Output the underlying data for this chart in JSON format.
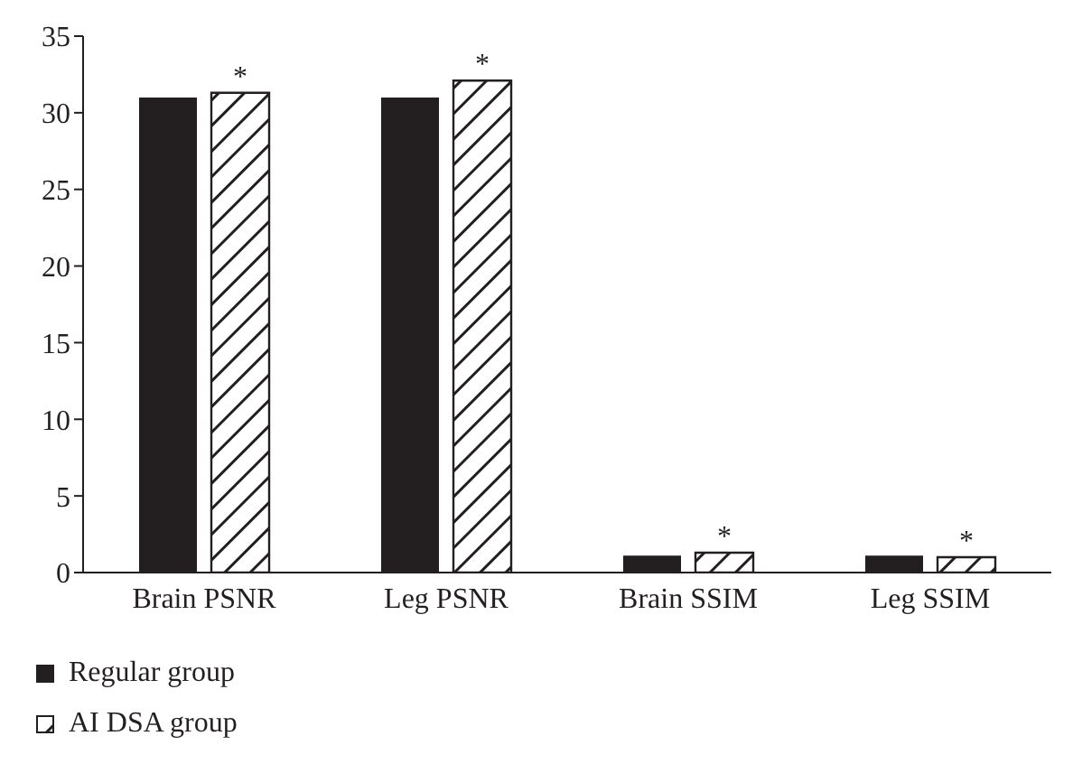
{
  "chart_data": {
    "type": "bar",
    "categories": [
      "Brain PSNR",
      "Leg PSNR",
      "Brain SSIM",
      "Leg SSIM"
    ],
    "series": [
      {
        "name": "Regular group",
        "color": "#231f20",
        "values": [
          31.0,
          31.0,
          1.1,
          1.1
        ]
      },
      {
        "name": "AI DSA group",
        "color": "#231f20",
        "values": [
          31.3,
          32.1,
          1.3,
          1.0
        ]
      }
    ],
    "ylim": [
      0,
      35
    ],
    "yticks": [
      0,
      5,
      10,
      15,
      20,
      25,
      30,
      35
    ],
    "grid": false,
    "legend": "bottom",
    "annotations": [
      {
        "text": "*",
        "x": "Brain PSNR",
        "y": 31.3
      },
      {
        "text": "*",
        "x": "Leg PSNR",
        "y": 32.1
      },
      {
        "text": "*",
        "x": "Brain SSIM",
        "y": 1.3
      },
      {
        "text": "*",
        "x": "Leg SSIM",
        "y": 1.0
      }
    ]
  }
}
